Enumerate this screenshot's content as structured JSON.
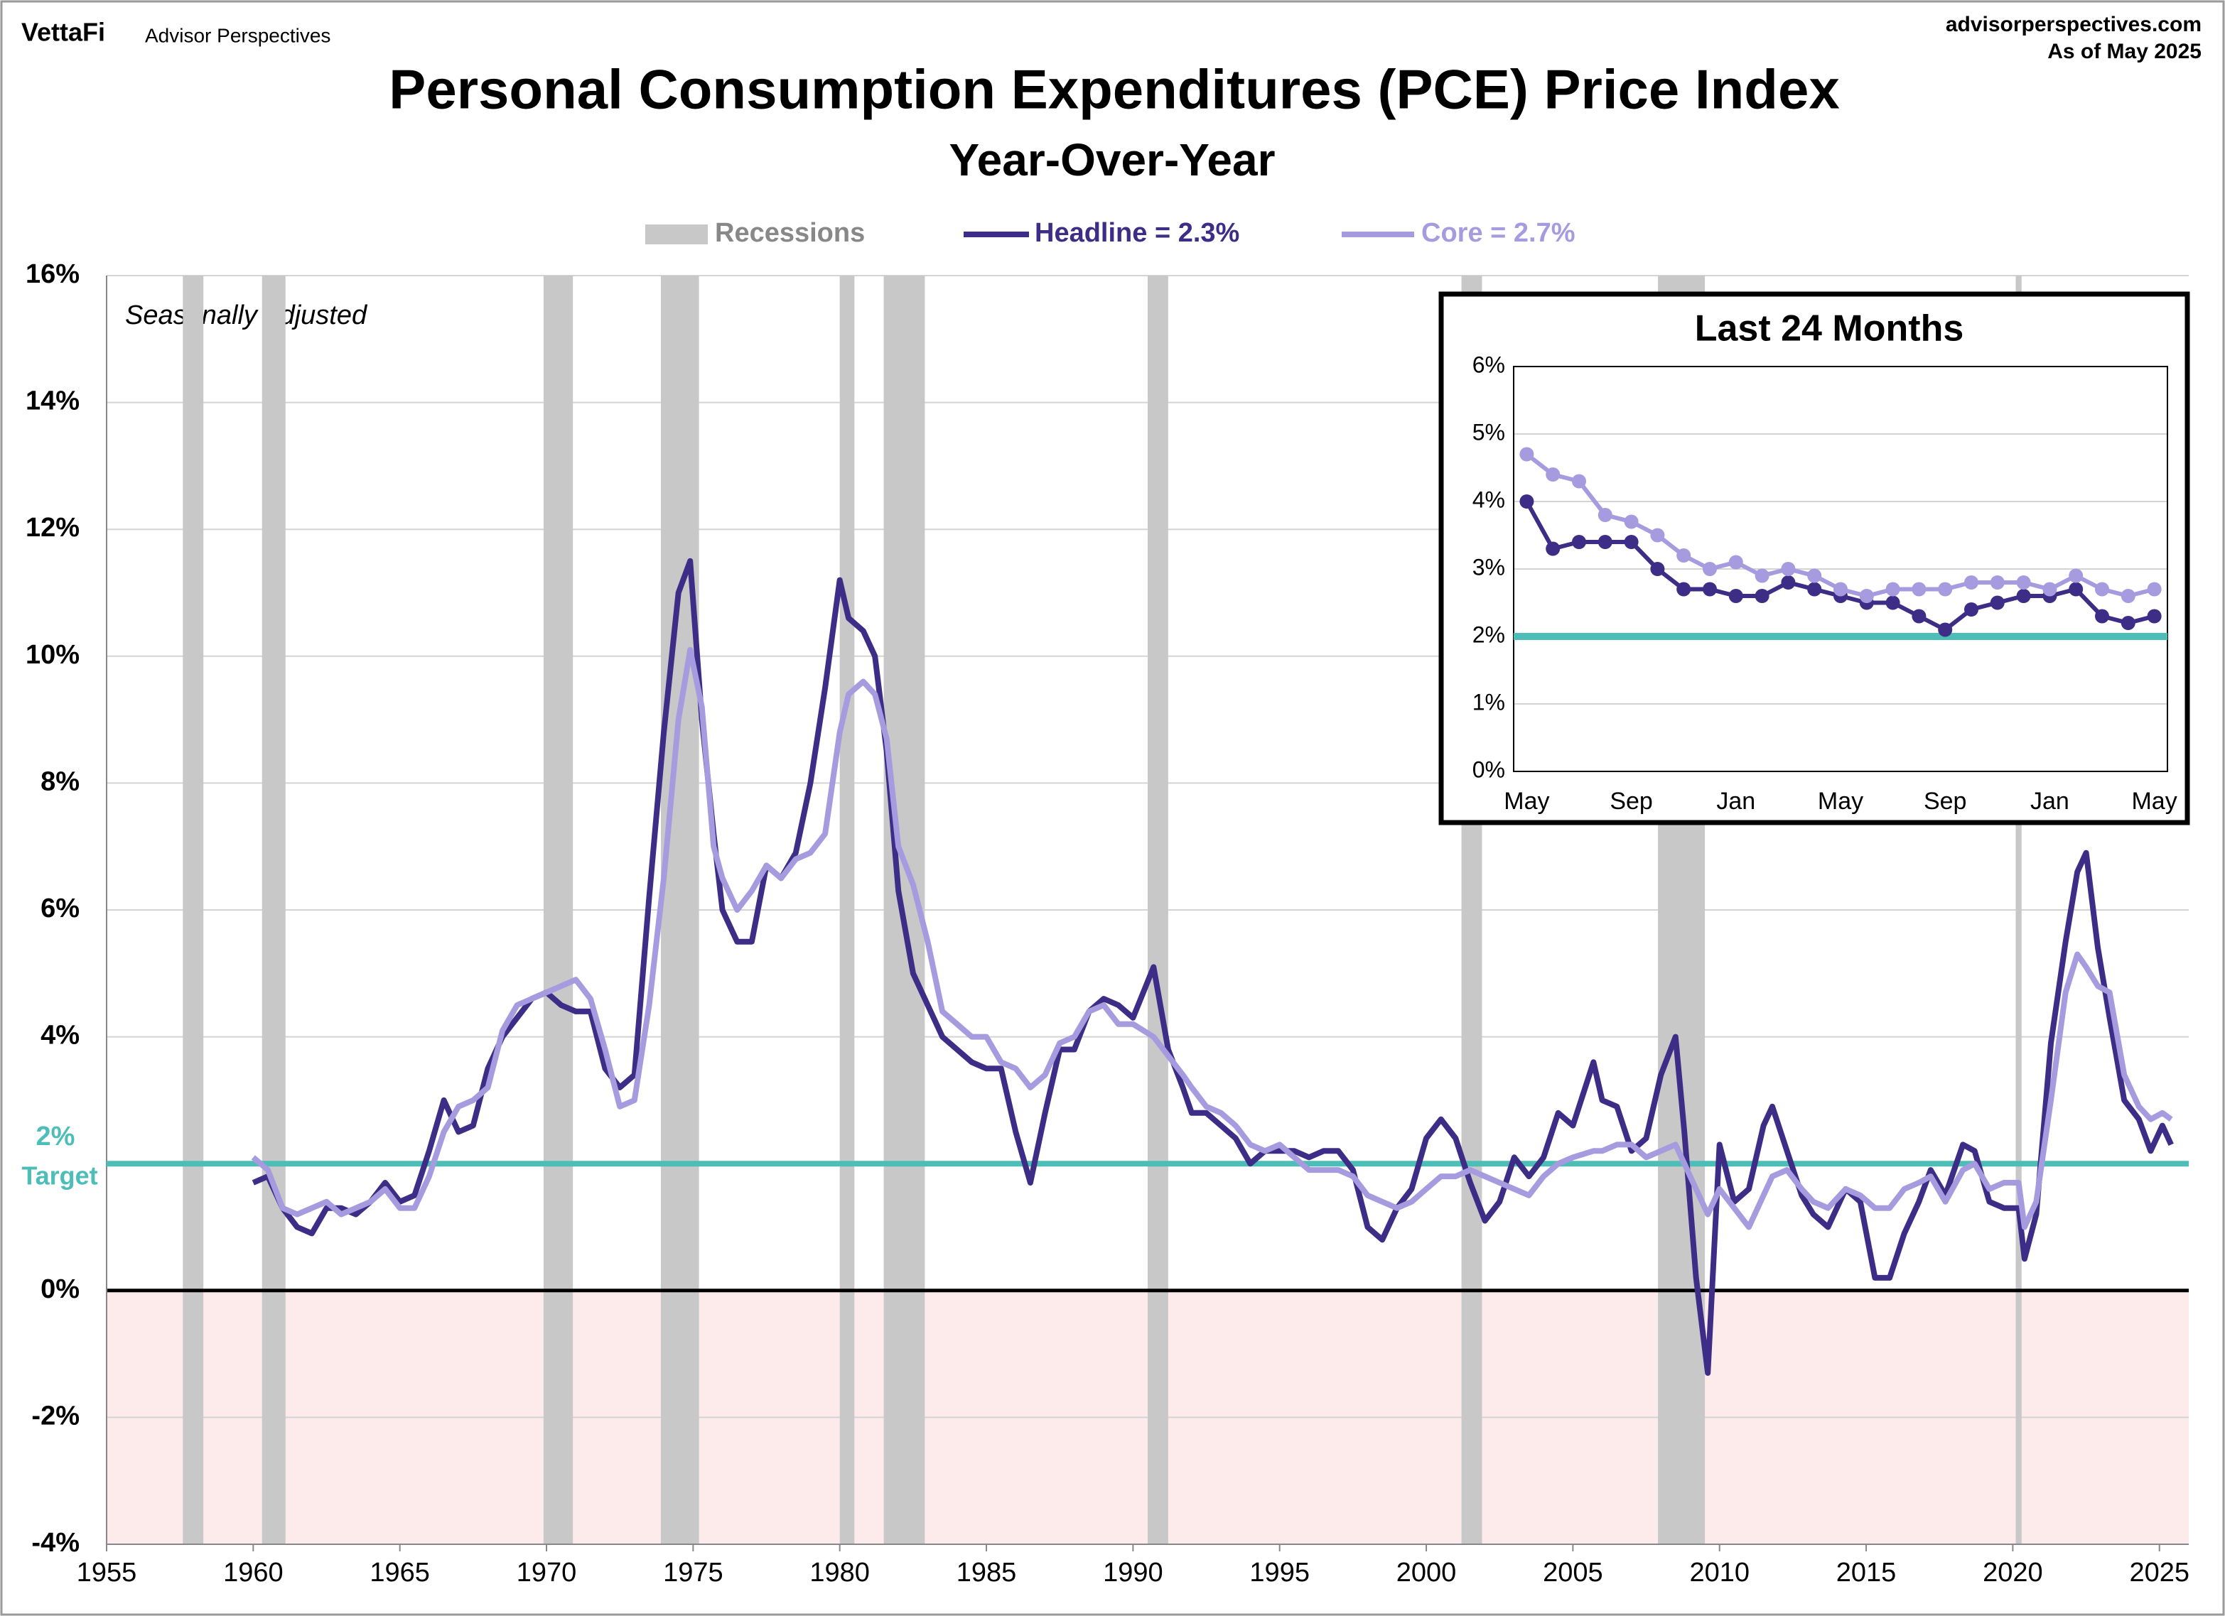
{
  "header": {
    "brand": "VettaFi",
    "brand_sub": "Advisor Perspectives",
    "site": "advisorperspectives.com",
    "as_of": "As of May 2025"
  },
  "chart_data": [
    {
      "type": "line",
      "title": "Personal Consumption Expenditures (PCE) Price Index",
      "subtitle": "Year-Over-Year",
      "annotation": "Seasonally adjusted",
      "xlim": [
        1955,
        2026
      ],
      "xticks": [
        1955,
        1960,
        1965,
        1970,
        1975,
        1980,
        1985,
        1990,
        1995,
        2000,
        2005,
        2010,
        2015,
        2020,
        2025
      ],
      "ylim": [
        -4,
        16
      ],
      "yticks": [
        {
          "value": -4,
          "label": "-4%"
        },
        {
          "value": -2,
          "label": "-2%"
        },
        {
          "value": 0,
          "label": "0%"
        },
        {
          "value": 4,
          "label": "4%"
        },
        {
          "value": 6,
          "label": "6%"
        },
        {
          "value": 8,
          "label": "8%"
        },
        {
          "value": 10,
          "label": "10%"
        },
        {
          "value": 12,
          "label": "12%"
        },
        {
          "value": 14,
          "label": "14%"
        },
        {
          "value": 16,
          "label": "16%"
        }
      ],
      "grid": true,
      "negative_shade": "#fdeaea",
      "recessions_label": "Recessions",
      "recession_color": "#c8c8c8",
      "recessions": [
        [
          1957.6,
          1958.3
        ],
        [
          1960.3,
          1961.1
        ],
        [
          1969.9,
          1970.9
        ],
        [
          1973.9,
          1975.2
        ],
        [
          1980.0,
          1980.5
        ],
        [
          1981.5,
          1982.9
        ],
        [
          1990.5,
          1991.2
        ],
        [
          2001.2,
          2001.9
        ],
        [
          2007.9,
          2009.5
        ],
        [
          2020.1,
          2020.3
        ]
      ],
      "target": {
        "value": 2,
        "label": "2%",
        "sublabel": "Target",
        "color": "#4dbdb8"
      },
      "x": [
        1960,
        1960.5,
        1961,
        1961.5,
        1962,
        1962.5,
        1963,
        1963.5,
        1964,
        1964.5,
        1965,
        1965.5,
        1966,
        1966.5,
        1967,
        1967.5,
        1968,
        1968.5,
        1969,
        1969.5,
        1970,
        1970.5,
        1971,
        1971.5,
        1972,
        1972.5,
        1973,
        1973.5,
        1974,
        1974.5,
        1974.9,
        1975.3,
        1975.7,
        1976,
        1976.5,
        1977,
        1977.5,
        1978,
        1978.5,
        1979,
        1979.5,
        1980,
        1980.3,
        1980.8,
        1981.2,
        1981.6,
        1982,
        1982.5,
        1983,
        1983.5,
        1984,
        1984.5,
        1985,
        1985.5,
        1986,
        1986.5,
        1987,
        1987.5,
        1988,
        1988.5,
        1989,
        1989.5,
        1990,
        1990.7,
        1991.2,
        1991.7,
        1992,
        1992.5,
        1993,
        1993.5,
        1994,
        1994.5,
        1995,
        1995.5,
        1996,
        1996.5,
        1997,
        1997.5,
        1998,
        1998.5,
        1999,
        1999.5,
        2000,
        2000.5,
        2001,
        2001.5,
        2002,
        2002.5,
        2003,
        2003.5,
        2004,
        2004.5,
        2005,
        2005.7,
        2006,
        2006.5,
        2007,
        2007.5,
        2008,
        2008.5,
        2008.8,
        2009.2,
        2009.6,
        2010,
        2010.5,
        2011,
        2011.5,
        2011.8,
        2012.3,
        2012.8,
        2013.2,
        2013.7,
        2014.3,
        2014.8,
        2015.3,
        2015.8,
        2016.3,
        2016.8,
        2017.2,
        2017.7,
        2018.3,
        2018.7,
        2019.2,
        2019.7,
        2020.2,
        2020.4,
        2020.8,
        2021.3,
        2021.8,
        2022.2,
        2022.5,
        2022.9,
        2023.3,
        2023.8,
        2024.3,
        2024.7,
        2025.1,
        2025.4
      ],
      "series": [
        {
          "name": "Headline = 2.3%",
          "color": "#3e2d86",
          "values": [
            1.7,
            1.8,
            1.3,
            1.0,
            0.9,
            1.3,
            1.3,
            1.2,
            1.4,
            1.7,
            1.4,
            1.5,
            2.2,
            3.0,
            2.5,
            2.6,
            3.5,
            4.0,
            4.3,
            4.6,
            4.7,
            4.5,
            4.4,
            4.4,
            3.5,
            3.2,
            3.4,
            6.2,
            8.8,
            11.0,
            11.5,
            9.0,
            7.2,
            6.0,
            5.5,
            5.5,
            6.7,
            6.5,
            6.9,
            8.0,
            9.5,
            11.2,
            10.6,
            10.4,
            10.0,
            8.5,
            6.3,
            5.0,
            4.5,
            4.0,
            3.8,
            3.6,
            3.5,
            3.5,
            2.5,
            1.7,
            2.8,
            3.8,
            3.8,
            4.4,
            4.6,
            4.5,
            4.3,
            5.1,
            3.8,
            3.2,
            2.8,
            2.8,
            2.6,
            2.4,
            2.0,
            2.2,
            2.2,
            2.2,
            2.1,
            2.2,
            2.2,
            1.9,
            1.0,
            0.8,
            1.3,
            1.6,
            2.4,
            2.7,
            2.4,
            1.7,
            1.1,
            1.4,
            2.1,
            1.8,
            2.1,
            2.8,
            2.6,
            3.6,
            3.0,
            2.9,
            2.2,
            2.4,
            3.4,
            4.0,
            2.5,
            0.2,
            -1.3,
            2.3,
            1.4,
            1.6,
            2.6,
            2.9,
            2.2,
            1.5,
            1.2,
            1.0,
            1.6,
            1.4,
            0.2,
            0.2,
            0.9,
            1.4,
            1.9,
            1.5,
            2.3,
            2.2,
            1.4,
            1.3,
            1.3,
            0.5,
            1.2,
            3.9,
            5.5,
            6.6,
            6.9,
            5.4,
            4.3,
            3.0,
            2.7,
            2.2,
            2.6,
            2.3
          ]
        },
        {
          "name": "Core = 2.7%",
          "color": "#a79be0",
          "values": [
            2.1,
            1.9,
            1.3,
            1.2,
            1.3,
            1.4,
            1.2,
            1.3,
            1.4,
            1.6,
            1.3,
            1.3,
            1.8,
            2.5,
            2.9,
            3.0,
            3.2,
            4.1,
            4.5,
            4.6,
            4.7,
            4.8,
            4.9,
            4.6,
            3.8,
            2.9,
            3.0,
            4.5,
            6.5,
            9.0,
            10.1,
            9.2,
            7.0,
            6.5,
            6.0,
            6.3,
            6.7,
            6.5,
            6.8,
            6.9,
            7.2,
            8.8,
            9.4,
            9.6,
            9.4,
            8.7,
            7.0,
            6.4,
            5.5,
            4.4,
            4.2,
            4.0,
            4.0,
            3.6,
            3.5,
            3.2,
            3.4,
            3.9,
            4.0,
            4.4,
            4.5,
            4.2,
            4.2,
            4.0,
            3.7,
            3.4,
            3.2,
            2.9,
            2.8,
            2.6,
            2.3,
            2.2,
            2.3,
            2.1,
            1.9,
            1.9,
            1.9,
            1.8,
            1.5,
            1.4,
            1.3,
            1.4,
            1.6,
            1.8,
            1.8,
            1.9,
            1.8,
            1.7,
            1.6,
            1.5,
            1.8,
            2.0,
            2.1,
            2.2,
            2.2,
            2.3,
            2.3,
            2.1,
            2.2,
            2.3,
            2.0,
            1.6,
            1.2,
            1.6,
            1.3,
            1.0,
            1.5,
            1.8,
            1.9,
            1.6,
            1.4,
            1.3,
            1.6,
            1.5,
            1.3,
            1.3,
            1.6,
            1.7,
            1.8,
            1.4,
            1.9,
            2.0,
            1.6,
            1.7,
            1.7,
            1.0,
            1.4,
            3.0,
            4.7,
            5.3,
            5.1,
            4.8,
            4.7,
            3.4,
            2.9,
            2.7,
            2.8,
            2.7
          ]
        }
      ]
    },
    {
      "type": "line",
      "title": "Last 24 Months",
      "categories": [
        "May",
        null,
        null,
        null,
        "Sep",
        null,
        null,
        null,
        "Jan",
        null,
        null,
        null,
        "May",
        null,
        null,
        null,
        "Sep",
        null,
        null,
        null,
        "Jan",
        null,
        null,
        null,
        "May"
      ],
      "ylim": [
        0,
        6
      ],
      "yticks": [
        {
          "value": 0,
          "label": "0%"
        },
        {
          "value": 1,
          "label": "1%"
        },
        {
          "value": 2,
          "label": "2%"
        },
        {
          "value": 3,
          "label": "3%"
        },
        {
          "value": 4,
          "label": "4%"
        },
        {
          "value": 5,
          "label": "5%"
        },
        {
          "value": 6,
          "label": "6%"
        }
      ],
      "grid": true,
      "target": {
        "value": 2,
        "color": "#4dbdb8"
      },
      "series": [
        {
          "name": "Headline",
          "color": "#3e2d86",
          "values": [
            4.0,
            3.3,
            3.4,
            3.4,
            3.4,
            3.0,
            2.7,
            2.7,
            2.6,
            2.6,
            2.8,
            2.7,
            2.6,
            2.5,
            2.5,
            2.3,
            2.1,
            2.4,
            2.5,
            2.6,
            2.6,
            2.7,
            2.3,
            2.2,
            2.3
          ]
        },
        {
          "name": "Core",
          "color": "#a79be0",
          "values": [
            4.7,
            4.4,
            4.3,
            3.8,
            3.7,
            3.5,
            3.2,
            3.0,
            3.1,
            2.9,
            3.0,
            2.9,
            2.7,
            2.6,
            2.7,
            2.7,
            2.7,
            2.8,
            2.8,
            2.8,
            2.7,
            2.9,
            2.7,
            2.6,
            2.7
          ]
        }
      ]
    }
  ]
}
